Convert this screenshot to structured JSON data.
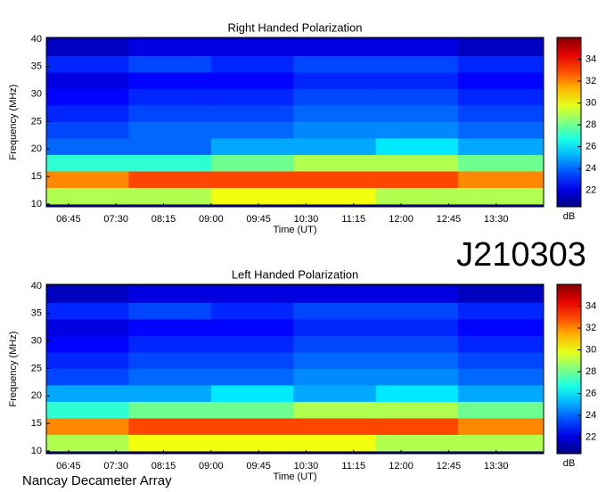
{
  "chart_data": [
    {
      "type": "heatmap",
      "title": "Right Handed Polarization",
      "x_label": "Time (UT)",
      "y_label": "Frequency (MHz)",
      "colorbar_label": "dB",
      "cmap": "jet",
      "xlim": [
        6.4,
        14.25
      ],
      "ylim": [
        9.5,
        40.3
      ],
      "clim": [
        20.5,
        36
      ],
      "xticks": [
        {
          "value": 6.75,
          "label": "06:45"
        },
        {
          "value": 7.5,
          "label": "07:30"
        },
        {
          "value": 8.25,
          "label": "08:15"
        },
        {
          "value": 9,
          "label": "09:00"
        },
        {
          "value": 9.75,
          "label": "09:45"
        },
        {
          "value": 10.5,
          "label": "10:30"
        },
        {
          "value": 11.25,
          "label": "11:15"
        },
        {
          "value": 12,
          "label": "12:00"
        },
        {
          "value": 12.75,
          "label": "12:45"
        },
        {
          "value": 13.5,
          "label": "13:30"
        }
      ],
      "yticks": [
        10,
        15,
        20,
        25,
        30,
        35,
        40
      ],
      "cticks": [
        22,
        24,
        26,
        28,
        30,
        32,
        34
      ],
      "x_edges": [
        6.4,
        7.7,
        9.0,
        10.3,
        11.6,
        12.9,
        14.25
      ],
      "y_edges": [
        10,
        13,
        16,
        19,
        22,
        25,
        28,
        31,
        34,
        37,
        40
      ],
      "z": [
        [
          29,
          29,
          30,
          30,
          29,
          29
        ],
        [
          32,
          33,
          33,
          33,
          33,
          32
        ],
        [
          27,
          27,
          28,
          29,
          29,
          28
        ],
        [
          24,
          24,
          25,
          25,
          26,
          25
        ],
        [
          23.5,
          24,
          24,
          24.5,
          24.5,
          24
        ],
        [
          23,
          23.5,
          23.5,
          24,
          24,
          23.5
        ],
        [
          22.5,
          23,
          23,
          23.5,
          23.5,
          23
        ],
        [
          22,
          22.5,
          22.5,
          23,
          23,
          22.5
        ],
        [
          23,
          23.5,
          23,
          23.5,
          23.5,
          23
        ],
        [
          21.5,
          22,
          22,
          22,
          22,
          21.5
        ]
      ]
    },
    {
      "type": "heatmap",
      "title": "Left Handed Polarization",
      "x_label": "Time (UT)",
      "y_label": "Frequency (MHz)",
      "colorbar_label": "dB",
      "cmap": "jet",
      "xlim": [
        6.4,
        14.25
      ],
      "ylim": [
        9.5,
        40.3
      ],
      "clim": [
        20.5,
        36
      ],
      "xticks": [
        {
          "value": 6.75,
          "label": "06:45"
        },
        {
          "value": 7.5,
          "label": "07:30"
        },
        {
          "value": 8.25,
          "label": "08:15"
        },
        {
          "value": 9,
          "label": "09:00"
        },
        {
          "value": 9.75,
          "label": "09:45"
        },
        {
          "value": 10.5,
          "label": "10:30"
        },
        {
          "value": 11.25,
          "label": "11:15"
        },
        {
          "value": 12,
          "label": "12:00"
        },
        {
          "value": 12.75,
          "label": "12:45"
        },
        {
          "value": 13.5,
          "label": "13:30"
        }
      ],
      "yticks": [
        10,
        15,
        20,
        25,
        30,
        35,
        40
      ],
      "cticks": [
        22,
        24,
        26,
        28,
        30,
        32,
        34
      ],
      "x_edges": [
        6.4,
        7.7,
        9.0,
        10.3,
        11.6,
        12.9,
        14.25
      ],
      "y_edges": [
        10,
        13,
        16,
        19,
        22,
        25,
        28,
        31,
        34,
        37,
        40
      ],
      "z": [
        [
          29,
          30,
          30,
          30,
          29,
          29
        ],
        [
          32,
          33,
          33,
          33,
          33,
          32
        ],
        [
          27,
          28,
          28,
          29,
          29,
          28
        ],
        [
          25,
          25,
          26,
          25,
          26,
          25
        ],
        [
          23.5,
          24,
          24,
          24.5,
          24.5,
          24
        ],
        [
          23,
          23.5,
          23.5,
          24,
          24,
          23.5
        ],
        [
          22.5,
          23,
          23,
          23.5,
          23.5,
          23
        ],
        [
          22,
          22.5,
          22.5,
          23,
          23,
          22.5
        ],
        [
          23,
          23.5,
          23,
          23.5,
          23.5,
          23
        ],
        [
          21.5,
          22,
          22,
          22,
          22,
          21.5
        ]
      ]
    }
  ],
  "header": {
    "id": "J210303"
  },
  "footer": {
    "credit": "Nancay Decameter Array"
  }
}
